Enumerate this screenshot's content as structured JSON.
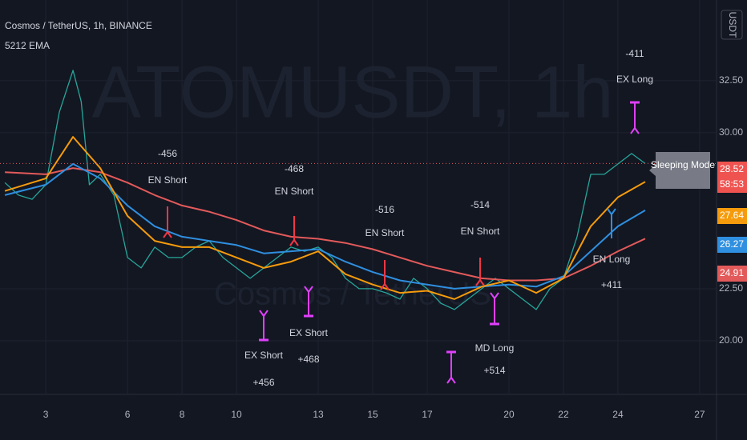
{
  "chart_data": {
    "type": "line",
    "header": "Cosmos / TetherUS, 1h, BINANCE",
    "indicator": "5212 EMA",
    "watermark": "ATOMUSDT, 1h",
    "watermark_sub": "Cosmos / TetherUS",
    "currency": "USDT",
    "countdown": "58:53",
    "callout": "Sleeping Mode",
    "x": [
      1.5,
      2,
      2.5,
      3,
      3.5,
      4,
      4.3,
      4.6,
      5,
      5.5,
      6,
      6.5,
      7,
      7.5,
      8,
      8.5,
      9,
      9.5,
      10,
      10.5,
      11,
      11.5,
      12,
      12.5,
      13,
      13.5,
      14,
      14.5,
      15,
      15.5,
      16,
      16.5,
      17,
      17.5,
      18,
      18.5,
      19,
      19.5,
      20,
      20.5,
      21,
      21.5,
      22,
      22.5,
      23,
      23.5,
      24,
      24.5,
      25
    ],
    "series": [
      {
        "name": "Price",
        "color": "#26a69a",
        "values": [
          27.6,
          27.0,
          26.8,
          27.5,
          31.0,
          33.0,
          31.5,
          27.5,
          28.0,
          27.0,
          24.0,
          23.5,
          24.5,
          24.0,
          24.0,
          24.5,
          24.8,
          24.0,
          23.5,
          23.0,
          23.5,
          24.0,
          24.5,
          24.3,
          24.5,
          24.0,
          23.0,
          22.5,
          22.5,
          22.3,
          22.0,
          23.0,
          22.5,
          21.8,
          21.5,
          22.0,
          22.5,
          23.0,
          22.5,
          22.0,
          21.5,
          22.5,
          23.0,
          25.0,
          28.0,
          28.0,
          28.5,
          29.0,
          28.52
        ]
      }
    ],
    "ema_x": [
      1.5,
      3,
      4,
      5,
      6,
      7,
      8,
      9,
      10,
      11,
      12,
      13,
      14,
      15,
      16,
      17,
      18,
      19,
      20,
      21,
      22,
      23,
      24,
      25
    ],
    "emas": [
      {
        "color": "#e35a5a",
        "values": [
          28.1,
          28.0,
          28.3,
          28.1,
          27.6,
          27.0,
          26.5,
          26.2,
          25.8,
          25.3,
          25.0,
          24.9,
          24.7,
          24.4,
          24.0,
          23.6,
          23.3,
          23.0,
          22.9,
          22.9,
          23.0,
          23.6,
          24.3,
          24.91
        ]
      },
      {
        "color": "#2f8fe0",
        "values": [
          27.0,
          27.5,
          28.5,
          27.8,
          26.5,
          25.5,
          25.0,
          24.8,
          24.6,
          24.2,
          24.3,
          24.4,
          23.8,
          23.3,
          22.9,
          22.7,
          22.5,
          22.6,
          22.7,
          22.6,
          23.1,
          24.3,
          25.5,
          26.27
        ]
      },
      {
        "color": "#f59b0c",
        "values": [
          27.2,
          27.8,
          29.8,
          28.3,
          26.0,
          24.8,
          24.5,
          24.5,
          24.0,
          23.5,
          23.8,
          24.3,
          23.2,
          22.7,
          22.3,
          22.4,
          22.0,
          22.6,
          22.9,
          22.3,
          23.0,
          25.5,
          26.9,
          27.64
        ]
      }
    ],
    "xlim": [
      1.32,
      27.59
    ],
    "xticks": [
      3,
      6,
      8,
      10,
      13,
      15,
      17,
      20,
      22,
      24,
      27
    ],
    "ylim": [
      17.46,
      36.38
    ],
    "yticks": [
      {
        "value": 20,
        "label": "20.00"
      },
      {
        "value": 22.5,
        "label": "22.50"
      },
      {
        "value": 30,
        "label": "30.00"
      },
      {
        "value": 32.5,
        "label": "32.50"
      }
    ],
    "grid": true,
    "annotations": [
      {
        "lines": [
          "-456",
          "EN Short"
        ]
      },
      {
        "lines": [
          "-468",
          "EN Short"
        ]
      },
      {
        "lines": [
          "-516",
          "EN Short"
        ]
      },
      {
        "lines": [
          "-514",
          "EN Short"
        ]
      },
      {
        "lines": [
          "-411",
          "EX Long"
        ]
      },
      {
        "lines": [
          "EN Long",
          "+411"
        ]
      },
      {
        "lines": [
          "EX Short",
          "+456"
        ]
      },
      {
        "lines": [
          "EX Short",
          "+468"
        ]
      },
      {
        "lines": [
          "MD Long",
          "+514"
        ]
      }
    ]
  }
}
